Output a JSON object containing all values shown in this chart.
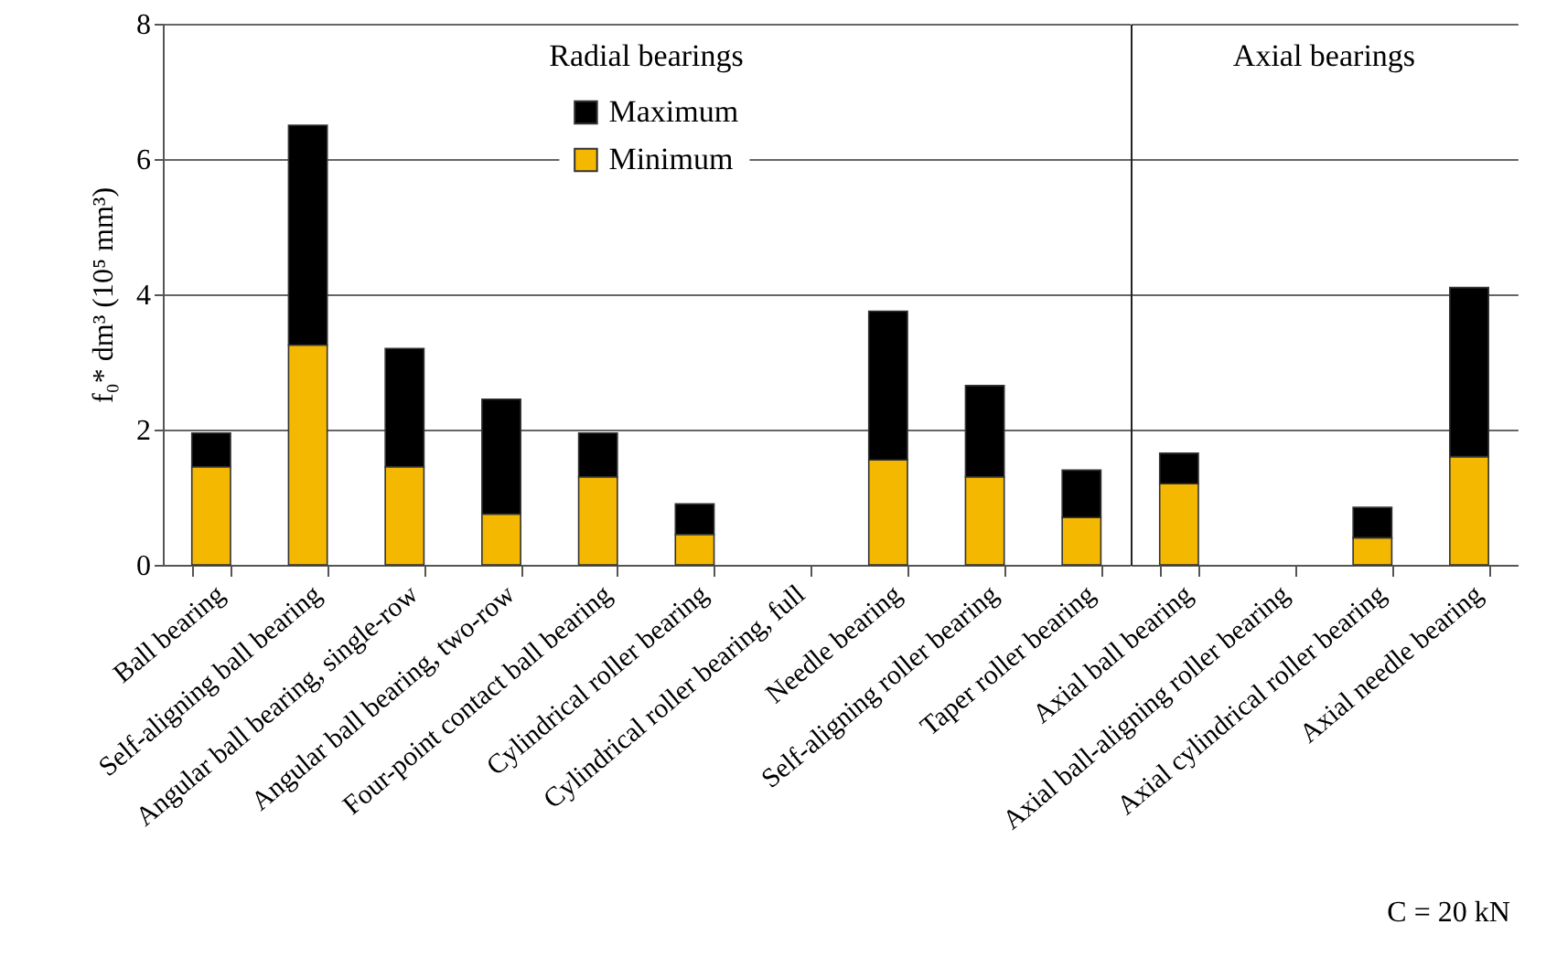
{
  "chart_data": [
    {
      "type": "bar",
      "stacked": true,
      "ylabel": "f₀* dm³ (10⁵ mm³)",
      "categories": [
        "Ball bearing",
        "Self-aligning ball bearing",
        "Angular ball bearing, single-row",
        "Angular ball bearing, two-row",
        "Four-point contact ball bearing",
        "Cylindrical roller bearing",
        "Cylindrical roller bearing, full",
        "Needle bearing",
        "Self-aligning roller bearing",
        "Taper roller bearing"
      ],
      "series": [
        {
          "name": "Minimum",
          "color": "#f5b800",
          "values": [
            1.45,
            3.25,
            1.45,
            0.75,
            1.3,
            0.45,
            null,
            1.55,
            1.3,
            0.7
          ]
        },
        {
          "name": "Maximum",
          "color": "#000000",
          "values": [
            0.5,
            3.25,
            1.75,
            1.7,
            0.65,
            0.45,
            null,
            2.2,
            1.35,
            0.7
          ]
        }
      ],
      "ylim": [
        0,
        8
      ],
      "yticks": [
        0,
        2,
        4,
        6,
        8
      ],
      "grid": "y",
      "legend": "top",
      "annotations": [
        "Radial bearings"
      ]
    },
    {
      "type": "bar",
      "stacked": true,
      "categories": [
        "Axial ball bearing",
        "Axial ball-aligning roller bearing",
        "Axial cylindrical roller bearing",
        "Axial needle bearing"
      ],
      "series": [
        {
          "color": "#f5b800",
          "values": [
            1.2,
            null,
            0.4,
            1.6
          ]
        },
        {
          "color": "#000000",
          "values": [
            0.45,
            null,
            0.45,
            2.5
          ]
        }
      ],
      "ylim": [
        0,
        8
      ],
      "yticks": [
        0,
        2,
        4,
        6,
        8
      ],
      "grid": "y",
      "tick_labels": "x",
      "annotations": [
        "Axial bearings",
        "C = 20 kN"
      ]
    }
  ]
}
